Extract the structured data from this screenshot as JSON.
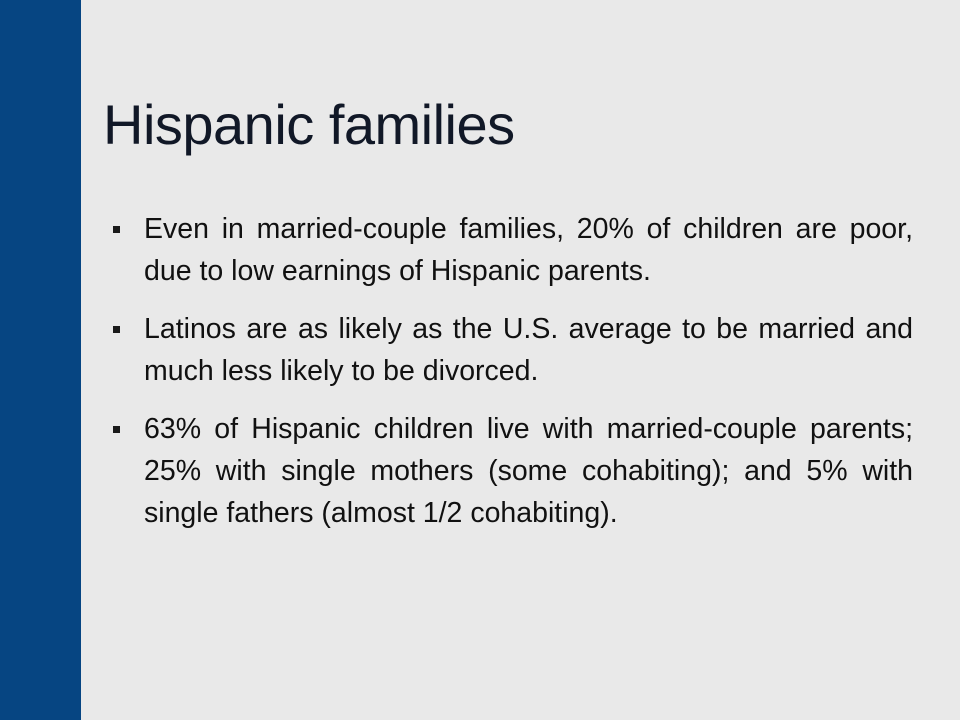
{
  "title": "Hispanic families",
  "bullets": [
    "Even in married-couple families, 20% of children are poor, due to low earnings of Hispanic parents.",
    "Latinos are as likely as the U.S. average to be married and much less likely to be divorced.",
    "63% of Hispanic children live with married-couple parents; 25% with single mothers (some cohabiting); and 5% with single fathers (almost 1/2 cohabiting)."
  ]
}
